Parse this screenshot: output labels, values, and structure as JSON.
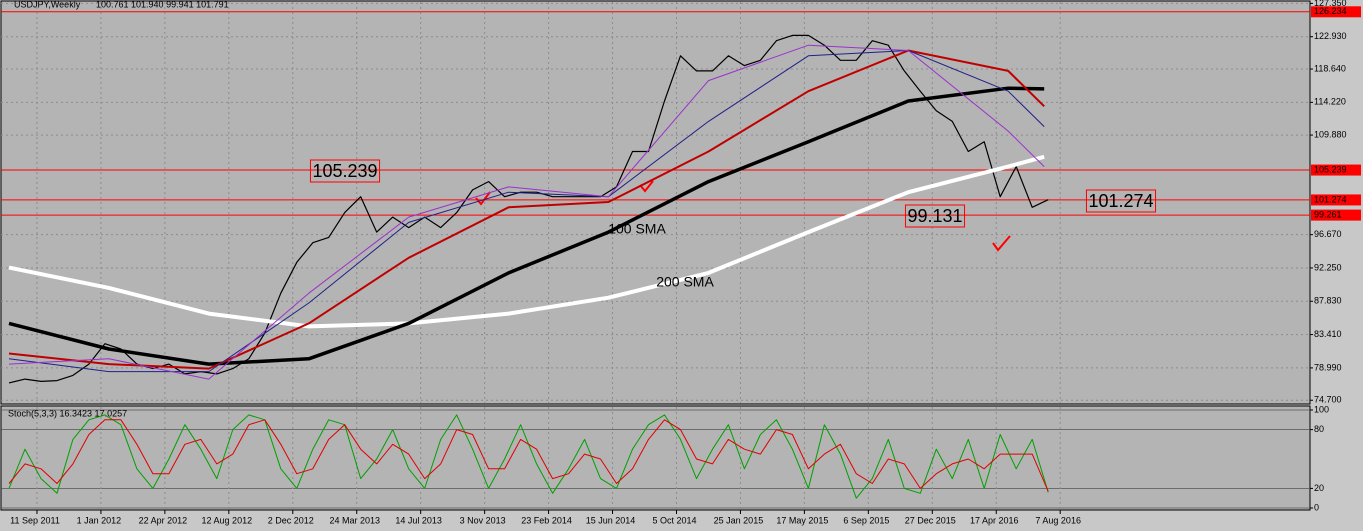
{
  "chart_data": [
    {
      "type": "line",
      "title": "USDJPY,Weekly",
      "ohlc_text": "100.761 101.940 99.941 101.791",
      "xlim": [
        -2,
        325.5
      ],
      "ylim": [
        74.2,
        127.8
      ],
      "yticks": [
        {
          "value": 127.35,
          "label": "127.350"
        },
        {
          "value": 122.93,
          "label": "122.930"
        },
        {
          "value": 118.64,
          "label": "118.640"
        },
        {
          "value": 114.22,
          "label": "114.220"
        },
        {
          "value": 109.88,
          "label": "109.880"
        },
        {
          "value": 96.67,
          "label": "96.670"
        },
        {
          "value": 92.25,
          "label": "92.250"
        },
        {
          "value": 87.83,
          "label": "87.830"
        },
        {
          "value": 83.41,
          "label": "83.410"
        },
        {
          "value": 78.99,
          "label": "78.990"
        },
        {
          "value": 74.7,
          "label": "74.700"
        }
      ],
      "levels": [
        126.234,
        105.239,
        101.274,
        99.261
      ],
      "level_color": "#ff0000",
      "annotations": [
        "105.239",
        "101.274",
        "99.131",
        "100 SMA",
        "200 SMA"
      ],
      "grid": true,
      "series": [
        {
          "color": "#000000",
          "width": 1.2,
          "x": [
            0,
            4,
            8,
            12,
            16,
            20,
            24,
            28,
            32,
            36,
            40,
            44,
            48,
            52,
            56,
            60,
            64,
            68,
            72,
            76,
            80,
            84,
            88,
            92,
            96,
            100,
            104,
            108,
            112,
            116,
            120,
            124,
            128,
            132,
            136,
            140,
            144,
            148,
            152,
            156,
            160,
            164,
            168,
            172,
            176,
            180,
            184,
            188,
            192,
            196,
            200,
            204,
            208,
            212,
            216,
            220,
            224,
            228,
            232,
            236,
            240,
            244,
            248,
            252,
            256,
            260
          ],
          "values": [
            77.0,
            77.5,
            77.2,
            77.3,
            78.0,
            79.5,
            82.2,
            81.5,
            79.5,
            78.9,
            79.5,
            78.2,
            78.5,
            78.2,
            78.9,
            80.2,
            83.6,
            88.9,
            93.0,
            95.6,
            96.3,
            99.6,
            101.7,
            97.0,
            99.0,
            97.6,
            99.0,
            97.6,
            99.6,
            102.6,
            103.7,
            101.7,
            102.3,
            102.3,
            101.7,
            101.7,
            101.7,
            101.7,
            103.0,
            107.7,
            107.7,
            114.4,
            120.4,
            118.4,
            118.4,
            120.4,
            119.1,
            119.8,
            122.4,
            123.1,
            123.1,
            121.8,
            119.8,
            119.8,
            122.4,
            121.8,
            118.4,
            115.7,
            113.1,
            111.7,
            107.7,
            109.0,
            101.7,
            105.7,
            100.3,
            101.3
          ]
        },
        {
          "color": "#ffffff",
          "width": 4,
          "x": [
            0,
            25,
            50,
            75,
            100,
            125,
            150,
            175,
            200,
            225,
            250,
            259
          ],
          "values": [
            92.3,
            89.6,
            86.2,
            84.5,
            84.9,
            86.2,
            88.3,
            91.6,
            97.0,
            102.3,
            105.7,
            107.0
          ]
        },
        {
          "color": "#000000",
          "width": 3.5,
          "x": [
            0,
            25,
            50,
            75,
            100,
            125,
            150,
            175,
            200,
            225,
            250,
            259
          ],
          "values": [
            84.9,
            81.5,
            79.5,
            80.2,
            84.9,
            91.6,
            97.0,
            103.7,
            109.0,
            114.4,
            116.1,
            116.0
          ]
        },
        {
          "color": "#c00000",
          "width": 2,
          "x": [
            0,
            25,
            50,
            75,
            100,
            125,
            150,
            175,
            200,
            225,
            250,
            259
          ],
          "values": [
            80.9,
            79.5,
            78.9,
            84.9,
            93.6,
            100.3,
            101.0,
            107.7,
            115.7,
            121.1,
            118.4,
            113.7
          ]
        },
        {
          "color": "#20208a",
          "width": 1,
          "x": [
            0,
            25,
            50,
            75,
            100,
            125,
            150,
            175,
            200,
            225,
            250,
            259
          ],
          "values": [
            80.2,
            78.5,
            78.5,
            87.6,
            98.3,
            102.3,
            101.7,
            111.7,
            120.4,
            121.1,
            115.7,
            111.0
          ]
        },
        {
          "color": "#9932cc",
          "width": 1,
          "x": [
            0,
            25,
            50,
            75,
            100,
            125,
            150,
            175,
            200,
            225,
            250,
            259
          ],
          "values": [
            79.5,
            80.2,
            77.5,
            88.9,
            99.0,
            103.0,
            101.7,
            117.1,
            121.8,
            121.1,
            110.4,
            105.7
          ]
        }
      ]
    },
    {
      "type": "line",
      "title": "Stoch(5,3,3) 16.3423 17.0257",
      "xlim": [
        -2,
        325.5
      ],
      "ylim": [
        0,
        100
      ],
      "yticks": [
        100,
        80,
        20,
        0
      ],
      "xticks": [
        {
          "value": 7,
          "label": "11 Sep 2011"
        },
        {
          "value": 23,
          "label": "1 Jan 2012"
        },
        {
          "value": 39,
          "label": "22 Apr 2012"
        },
        {
          "value": 55,
          "label": "12 Aug 2012"
        },
        {
          "value": 71,
          "label": "2 Dec 2012"
        },
        {
          "value": 87,
          "label": "24 Mar 2013"
        },
        {
          "value": 103,
          "label": "14 Jul 2013"
        },
        {
          "value": 119,
          "label": "3 Nov 2013"
        },
        {
          "value": 135,
          "label": "23 Feb 2014"
        },
        {
          "value": 151,
          "label": "15 Jun 2014"
        },
        {
          "value": 167,
          "label": "5 Oct 2014"
        },
        {
          "value": 183,
          "label": "25 Jan 2015"
        },
        {
          "value": 199,
          "label": "17 May 2015"
        },
        {
          "value": 215,
          "label": "6 Sep 2015"
        },
        {
          "value": 231,
          "label": "27 Dec 2015"
        },
        {
          "value": 247,
          "label": "17 Apr 2016"
        },
        {
          "value": 263,
          "label": "7 Aug 2016"
        }
      ],
      "series": [
        {
          "color": "#00a000",
          "width": 1,
          "x": [
            0,
            4,
            8,
            12,
            16,
            20,
            24,
            28,
            32,
            36,
            40,
            44,
            48,
            52,
            56,
            60,
            64,
            68,
            72,
            76,
            80,
            84,
            88,
            92,
            96,
            100,
            104,
            108,
            112,
            116,
            120,
            124,
            128,
            132,
            136,
            140,
            144,
            148,
            152,
            156,
            160,
            164,
            168,
            172,
            176,
            180,
            184,
            188,
            192,
            196,
            200,
            204,
            208,
            212,
            216,
            220,
            224,
            228,
            232,
            236,
            240,
            244,
            248,
            252,
            256,
            260
          ],
          "values": [
            20,
            60,
            30,
            15,
            70,
            90,
            95,
            85,
            40,
            20,
            50,
            85,
            60,
            30,
            80,
            95,
            90,
            40,
            20,
            60,
            90,
            85,
            30,
            50,
            80,
            40,
            20,
            70,
            95,
            60,
            20,
            50,
            85,
            45,
            15,
            40,
            70,
            30,
            20,
            60,
            85,
            95,
            70,
            30,
            60,
            85,
            40,
            75,
            90,
            60,
            20,
            85,
            55,
            10,
            30,
            70,
            20,
            15,
            60,
            30,
            70,
            20,
            75,
            40,
            70,
            16
          ]
        },
        {
          "color": "#e00000",
          "width": 1,
          "x": [
            0,
            4,
            8,
            12,
            16,
            20,
            24,
            28,
            32,
            36,
            40,
            44,
            48,
            52,
            56,
            60,
            64,
            68,
            72,
            76,
            80,
            84,
            88,
            92,
            96,
            100,
            104,
            108,
            112,
            116,
            120,
            124,
            128,
            132,
            136,
            140,
            144,
            148,
            152,
            156,
            160,
            164,
            168,
            172,
            176,
            180,
            184,
            188,
            192,
            196,
            200,
            204,
            208,
            212,
            216,
            220,
            224,
            228,
            232,
            236,
            240,
            244,
            248,
            252,
            256,
            260
          ],
          "values": [
            25,
            45,
            40,
            25,
            45,
            75,
            90,
            90,
            65,
            35,
            35,
            65,
            70,
            45,
            55,
            85,
            90,
            65,
            35,
            40,
            70,
            85,
            60,
            45,
            65,
            55,
            30,
            45,
            80,
            75,
            40,
            40,
            70,
            60,
            30,
            35,
            55,
            50,
            25,
            40,
            70,
            90,
            80,
            50,
            45,
            70,
            60,
            55,
            80,
            75,
            40,
            55,
            65,
            35,
            25,
            50,
            45,
            20,
            35,
            45,
            50,
            40,
            55,
            55,
            55,
            17
          ]
        }
      ]
    }
  ]
}
